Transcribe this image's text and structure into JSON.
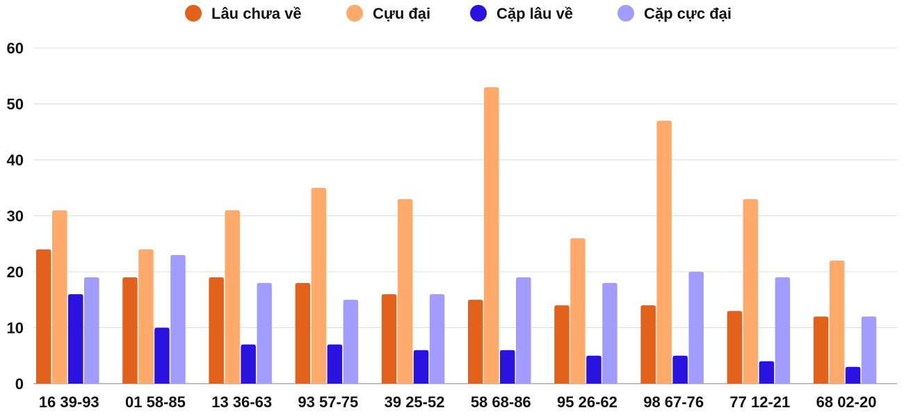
{
  "chart_data": {
    "type": "bar",
    "title": "",
    "xlabel": "",
    "ylabel": "",
    "ylim": [
      0,
      60
    ],
    "yticks": [
      0,
      10,
      20,
      30,
      40,
      50,
      60
    ],
    "grid": true,
    "legend_position": "top-center",
    "categories": [
      "16 39-93",
      "01 58-85",
      "13 36-63",
      "93 57-75",
      "39 25-52",
      "58 68-86",
      "95 26-62",
      "98 67-76",
      "77 12-21",
      "68 02-20"
    ],
    "series": [
      {
        "name": "Lâu chưa về",
        "color": "#e2611b",
        "values": [
          24,
          19,
          19,
          18,
          16,
          15,
          14,
          14,
          13,
          12
        ]
      },
      {
        "name": "Cựu đại",
        "color": "#ffa96b",
        "values": [
          31,
          24,
          31,
          35,
          33,
          53,
          26,
          47,
          33,
          22
        ]
      },
      {
        "name": "Cặp lâu về",
        "color": "#2a12e0",
        "values": [
          16,
          10,
          7,
          7,
          6,
          6,
          5,
          5,
          4,
          3
        ]
      },
      {
        "name": "Cặp cực đại",
        "color": "#a39cff",
        "values": [
          19,
          23,
          18,
          15,
          16,
          19,
          18,
          20,
          19,
          12
        ]
      }
    ]
  }
}
